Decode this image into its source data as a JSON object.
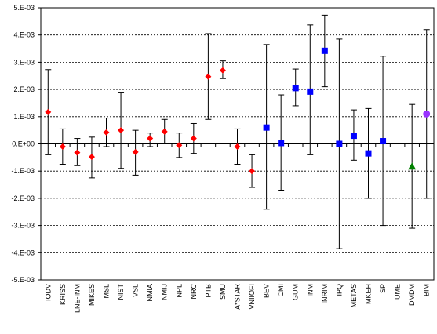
{
  "chart_data": {
    "type": "scatter",
    "title": "",
    "xlabel": "",
    "ylabel": "",
    "ylim": [
      -0.005,
      0.005
    ],
    "y_ticks": [
      "5.E-03",
      "4.E-03",
      "3.E-03",
      "2.E-03",
      "1.E-03",
      "0.E+00",
      "-1.E-03",
      "-2.E-03",
      "-3.E-03",
      "-4.E-03",
      "-5.E-03"
    ],
    "y_tick_values": [
      0.005,
      0.004,
      0.003,
      0.002,
      0.001,
      0,
      -0.001,
      -0.002,
      -0.003,
      -0.004,
      -0.005
    ],
    "grid": "horizontal dashed",
    "legend": "none",
    "categories": [
      "IODV",
      "KRISS",
      "LNE-INM",
      "MIKES",
      "MSL",
      "NIST",
      "VSL",
      "NMIA",
      "NMIJ",
      "NPL",
      "NRC",
      "PTB",
      "SMU",
      "A*STAR",
      "VNIIOFI",
      "BEV",
      "CMI",
      "GUM",
      "INM",
      "INRIM",
      "IPQ",
      "METAS",
      "MKEH",
      "SP",
      "UME",
      "DMDM",
      "BIM"
    ],
    "points": [
      {
        "category": "IODV",
        "y": 0.00117,
        "low": -0.0004,
        "high": 0.00273,
        "marker": "diamond",
        "color": "#ff0000"
      },
      {
        "category": "KRISS",
        "y": -0.0001,
        "low": -0.00075,
        "high": 0.00055,
        "marker": "diamond",
        "color": "#ff0000"
      },
      {
        "category": "LNE-INM",
        "y": -0.00032,
        "low": -0.0008,
        "high": 0.0002,
        "marker": "diamond",
        "color": "#ff0000"
      },
      {
        "category": "MIKES",
        "y": -0.00048,
        "low": -0.00125,
        "high": 0.00025,
        "marker": "diamond",
        "color": "#ff0000"
      },
      {
        "category": "MSL",
        "y": 0.00042,
        "low": -0.0001,
        "high": 0.00095,
        "marker": "diamond",
        "color": "#ff0000"
      },
      {
        "category": "NIST",
        "y": 0.0005,
        "low": -0.0009,
        "high": 0.0019,
        "marker": "diamond",
        "color": "#ff0000"
      },
      {
        "category": "VSL",
        "y": -0.0003,
        "low": -0.00115,
        "high": 0.0005,
        "marker": "diamond",
        "color": "#ff0000"
      },
      {
        "category": "NMIA",
        "y": 0.0002,
        "low": -0.0001,
        "high": 0.0004,
        "marker": "diamond",
        "color": "#ff0000"
      },
      {
        "category": "NMIJ",
        "y": 0.00045,
        "low": 0.0,
        "high": 0.0009,
        "marker": "diamond",
        "color": "#ff0000"
      },
      {
        "category": "NPL",
        "y": -5e-05,
        "low": -0.0005,
        "high": 0.0004,
        "marker": "diamond",
        "color": "#ff0000"
      },
      {
        "category": "NRC",
        "y": 0.0002,
        "low": -0.00035,
        "high": 0.00075,
        "marker": "diamond",
        "color": "#ff0000"
      },
      {
        "category": "PTB",
        "y": 0.00247,
        "low": 0.0009,
        "high": 0.00405,
        "marker": "diamond",
        "color": "#ff0000"
      },
      {
        "category": "SMU",
        "y": 0.0027,
        "low": 0.0024,
        "high": 0.00305,
        "marker": "diamond",
        "color": "#ff0000"
      },
      {
        "category": "A*STAR",
        "y": -0.0001,
        "low": -0.00075,
        "high": 0.00055,
        "marker": "diamond",
        "color": "#ff0000"
      },
      {
        "category": "VNIIOFI",
        "y": -0.001,
        "low": -0.0016,
        "high": -0.0004,
        "marker": "diamond",
        "color": "#ff0000"
      },
      {
        "category": "BEV",
        "y": 0.0006,
        "low": -0.0024,
        "high": 0.00365,
        "marker": "square",
        "color": "#0000ff"
      },
      {
        "category": "CMI",
        "y": 3e-05,
        "low": -0.0017,
        "high": 0.0018,
        "marker": "square",
        "color": "#0000ff"
      },
      {
        "category": "GUM",
        "y": 0.00205,
        "low": 0.0014,
        "high": 0.00275,
        "marker": "square",
        "color": "#0000ff"
      },
      {
        "category": "INM",
        "y": 0.00192,
        "low": -0.0004,
        "high": 0.00437,
        "marker": "square",
        "color": "#0000ff"
      },
      {
        "category": "INRIM",
        "y": 0.00342,
        "low": 0.0021,
        "high": 0.00473,
        "marker": "square",
        "color": "#0000ff"
      },
      {
        "category": "IPQ",
        "y": 0.0,
        "low": -0.00385,
        "high": 0.00385,
        "marker": "square",
        "color": "#0000ff"
      },
      {
        "category": "METAS",
        "y": 0.0003,
        "low": -0.0006,
        "high": 0.00125,
        "marker": "square",
        "color": "#0000ff"
      },
      {
        "category": "MKEH",
        "y": -0.00035,
        "low": -0.002,
        "high": 0.0013,
        "marker": "square",
        "color": "#0000ff"
      },
      {
        "category": "SP",
        "y": 0.0001,
        "low": -0.003,
        "high": 0.00322,
        "marker": "square",
        "color": "#0000ff"
      },
      {
        "category": "UME",
        "y": null,
        "low": null,
        "high": null,
        "marker": "none",
        "color": "#0000ff"
      },
      {
        "category": "DMDM",
        "y": -0.00083,
        "low": -0.0031,
        "high": 0.00145,
        "marker": "triangle",
        "color": "#008000"
      },
      {
        "category": "BIM",
        "y": 0.0011,
        "low": -0.002,
        "high": 0.0042,
        "marker": "circle",
        "color": "#9933ff"
      }
    ]
  }
}
